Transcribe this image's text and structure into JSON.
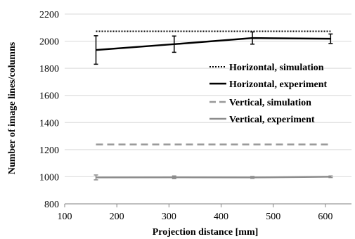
{
  "chart_data": {
    "type": "line",
    "xlabel": "Projection distance [mm]",
    "ylabel": "Number of image lines/columns",
    "xlim": [
      100,
      650
    ],
    "ylim": [
      800,
      2200
    ],
    "xticks": [
      100,
      200,
      300,
      400,
      500,
      600
    ],
    "yticks": [
      800,
      1000,
      1200,
      1400,
      1600,
      1800,
      2000,
      2200
    ],
    "grid": "horizontal",
    "legend_position": "right",
    "series": [
      {
        "name": "Horizontal, simulation",
        "style": "dotted",
        "color": "#000000",
        "x": [
          160,
          610
        ],
        "y": [
          2073,
          2073
        ]
      },
      {
        "name": "Horizontal, experiment",
        "style": "solid",
        "color": "#000000",
        "x": [
          160,
          310,
          460,
          610
        ],
        "y": [
          1935,
          1978,
          2023,
          2018
        ],
        "error": [
          105,
          60,
          45,
          35
        ]
      },
      {
        "name": "Vertical, simulation",
        "style": "dashed",
        "color": "#999999",
        "x": [
          160,
          610
        ],
        "y": [
          1238,
          1238
        ]
      },
      {
        "name": "Vertical, experiment",
        "style": "solid",
        "color": "#8c8c8c",
        "x": [
          160,
          310,
          460,
          610
        ],
        "y": [
          995,
          996,
          995,
          1000
        ],
        "error": [
          18,
          10,
          7,
          6
        ]
      }
    ]
  }
}
